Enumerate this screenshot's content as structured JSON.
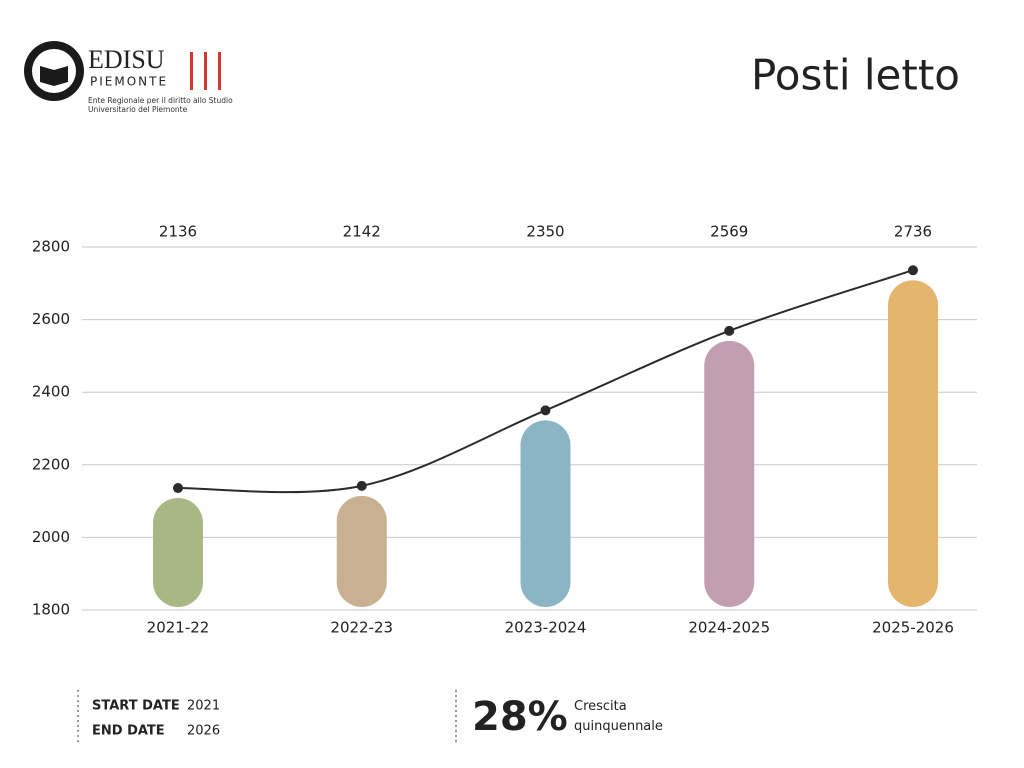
{
  "logo": {
    "name": "EDISU",
    "region": "PIEMONTE",
    "subtitle": "Ente Regionale per il diritto allo Studio Universitario del Piemonte"
  },
  "chart_data": {
    "type": "bar",
    "title": "Posti letto",
    "categories": [
      "2021-22",
      "2022-23",
      "2023-2024",
      "2024-2025",
      "2025-2026"
    ],
    "values": [
      2136,
      2142,
      2350,
      2569,
      2736
    ],
    "colors": [
      "#a9b784",
      "#c8b090",
      "#8bb5c4",
      "#c39db0",
      "#e5b56e"
    ],
    "line_color": "#2b2b2b",
    "ylim": [
      1800,
      2800
    ],
    "yticks": [
      1800,
      2000,
      2200,
      2400,
      2600,
      2800
    ],
    "grid": true
  },
  "footer": {
    "start_label": "START DATE",
    "start": "2021",
    "end_label": "END DATE",
    "end": "2026",
    "growth": "28%",
    "growth_label": "Crescita quinquennale"
  }
}
